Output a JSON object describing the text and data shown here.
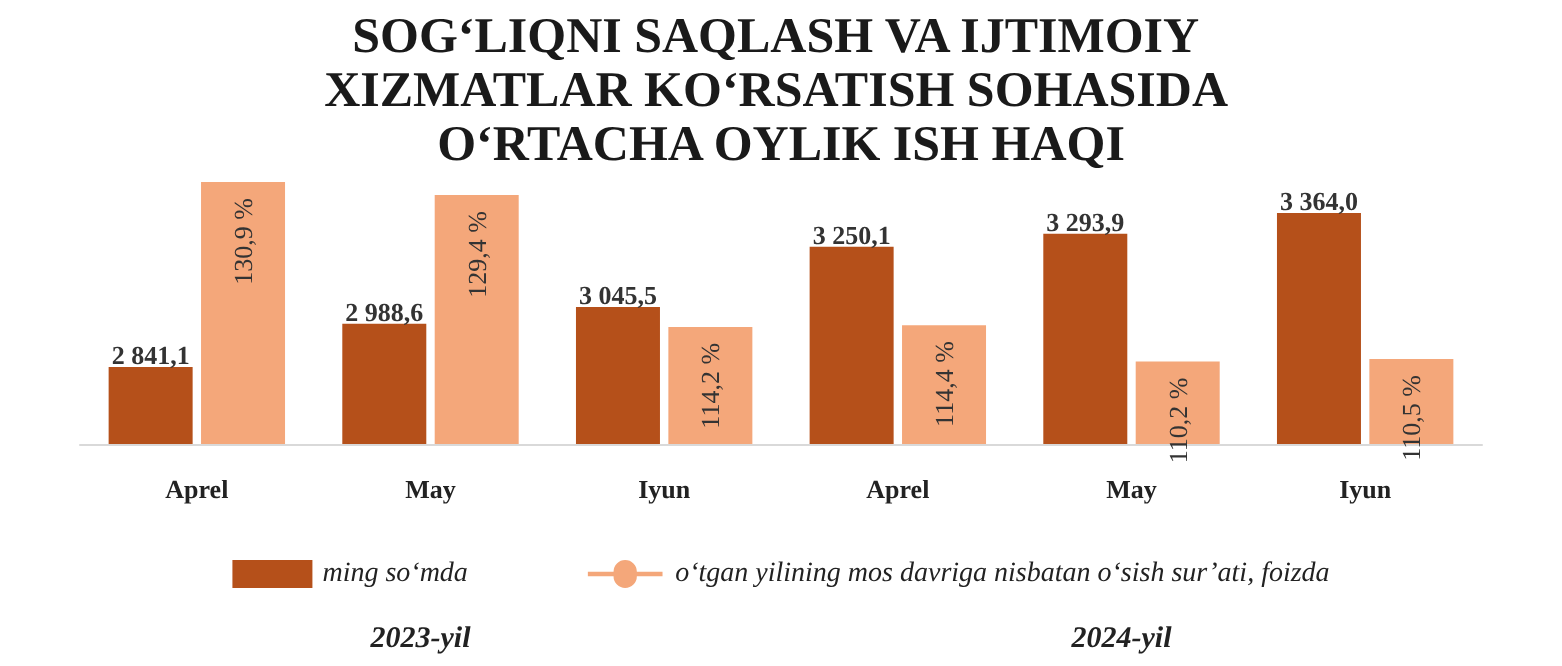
{
  "chart_data": {
    "type": "bar",
    "title": "SOG‘LIQNI SAQLASH VA IJTIMOIY XIZMATLAR KO‘RSATISH SOHASIDA O‘RTACHA OYLIK ISH HAQI",
    "categories": [
      "Aprel",
      "May",
      "Iyun",
      "Aprel",
      "May",
      "Iyun"
    ],
    "series": [
      {
        "name": "ming so‘mda",
        "color": "#b5501a",
        "values": [
          2841.1,
          2988.6,
          3045.5,
          3250.1,
          3293.9,
          3364.0
        ],
        "value_labels": [
          "2 841,1",
          "2 988,6",
          "3 045,5",
          "3 250,1",
          "3 293,9",
          "3 364,0"
        ]
      },
      {
        "name": "o‘tgan yilining mos davriga nisbatan o‘sish sur’ati, foizda",
        "color": "#f4a77a",
        "axis": "y2",
        "values": [
          130.9,
          129.4,
          114.2,
          114.4,
          110.2,
          110.5
        ],
        "value_labels": [
          "130,9 %",
          "129,4 %",
          "114,2 %",
          "114,4 %",
          "110,2 %",
          "110,5 %"
        ]
      }
    ],
    "ylim": [
      2580,
      3490
    ],
    "y2lim": [
      100.7,
      131.6
    ],
    "tick_labels": "x",
    "grid": false,
    "legend": "bottom",
    "annotations": [
      "2023-yil",
      "2024-yil"
    ]
  }
}
